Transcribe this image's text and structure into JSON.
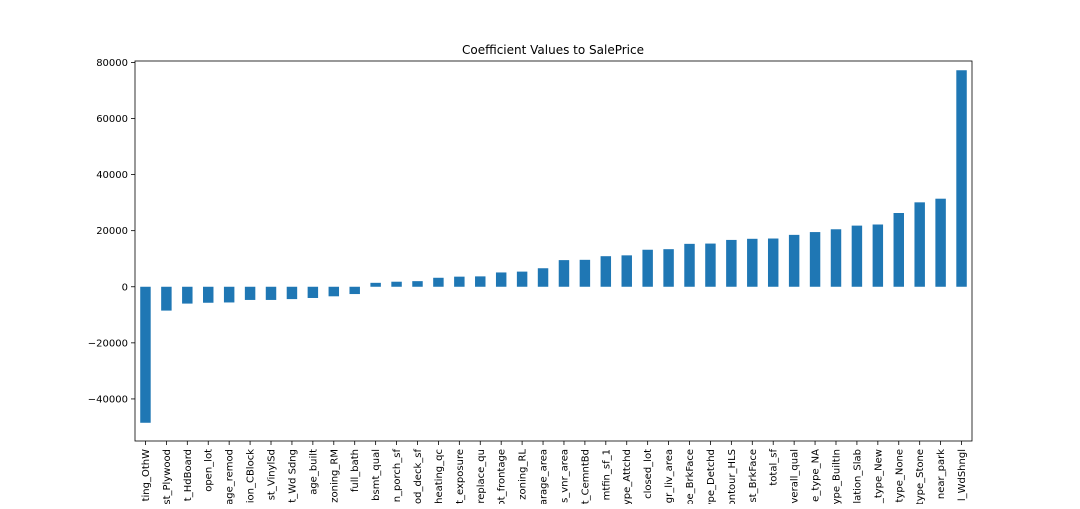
{
  "chart_data": {
    "type": "bar",
    "title": "Coefficient Values to SalePrice",
    "xlabel": "",
    "ylabel": "",
    "ylim": [
      -55000,
      80500
    ],
    "yticks": [
      -40000,
      -20000,
      0,
      20000,
      40000,
      60000,
      80000
    ],
    "ytick_labels": [
      "−40000",
      "−20000",
      "0",
      "20000",
      "40000",
      "60000",
      "80000"
    ],
    "bar_color": "#1f77b4",
    "grid": false,
    "categories": [
      "ting_OthW",
      "st_Plywood",
      "t_HdBoard",
      "open_lot",
      "age_remod",
      "ion_CBlock",
      "st_VinylSd",
      "t_Wd Sdng",
      "age_built",
      "zoning_RM",
      "full_bath",
      "bsmt_qual",
      "n_porch_sf",
      "od_deck_sf",
      "heating_qc",
      "t_exposure",
      "replace_qu",
      "ot_frontage",
      "zoning_RL",
      "arage_area",
      "s_vnr_area",
      "t_CemntBd",
      "mtfin_sf_1",
      "ype_Attchd",
      "closed_lot",
      "gr_liv_area",
      "pe_BrkFace",
      "ype_Detchd",
      "ontour_HLS",
      "st_BrkFace",
      "total_sf",
      "verall_qual",
      "e_type_NA",
      "ype_BuiltIn",
      "lation_Slab",
      "_type_New",
      "type_None",
      "type_Stone",
      "near_park",
      "l_WdShngl"
    ],
    "values": [
      -48500,
      -8500,
      -6000,
      -5700,
      -5600,
      -4700,
      -4700,
      -4400,
      -4000,
      -3400,
      -2600,
      1400,
      1800,
      2000,
      3200,
      3600,
      3700,
      5100,
      5400,
      6600,
      9500,
      9600,
      10900,
      11200,
      13200,
      13400,
      15300,
      15400,
      16700,
      17100,
      17200,
      18500,
      19500,
      20500,
      21800,
      22200,
      26300,
      30100,
      31400,
      77200
    ]
  }
}
